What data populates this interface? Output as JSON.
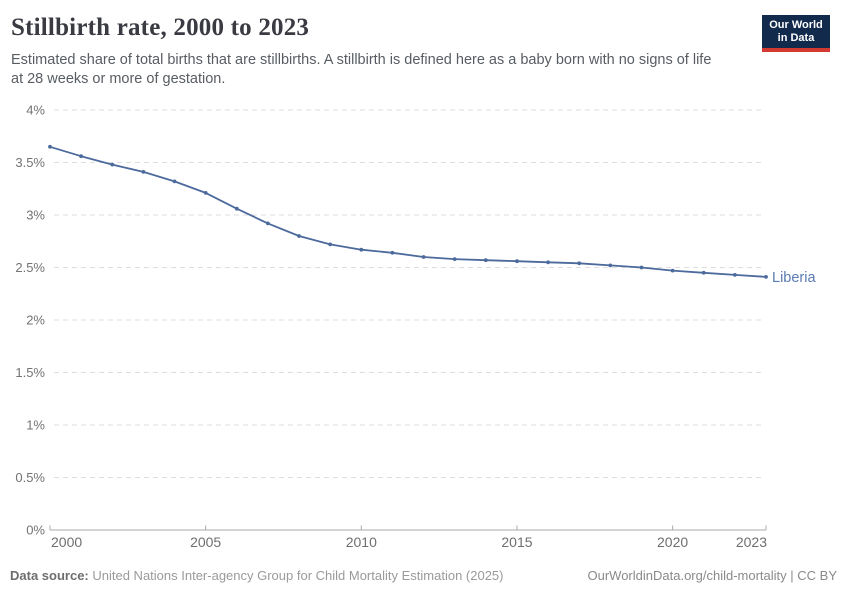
{
  "header": {
    "title": "Stillbirth rate, 2000 to 2023",
    "subtitle_lines": [
      "Estimated share of total births that are stillbirths. A stillbirth is defined here as a baby born with no signs of life",
      "at 28 weeks or more of gestation."
    ],
    "logo": {
      "line1": "Our World",
      "line2": "in Data",
      "bg_color": "#122B4D",
      "accent_color": "#D23A31"
    }
  },
  "chart_data": {
    "type": "line",
    "title": "Stillbirth rate, 2000 to 2023",
    "xlabel": "",
    "ylabel": "",
    "unit": "%",
    "ylim": [
      0,
      4
    ],
    "grid": "horizontal-dashed",
    "legend_position": "end-of-line-label",
    "x": [
      2000,
      2001,
      2002,
      2003,
      2004,
      2005,
      2006,
      2007,
      2008,
      2009,
      2010,
      2011,
      2012,
      2013,
      2014,
      2015,
      2016,
      2017,
      2018,
      2019,
      2020,
      2021,
      2022,
      2023
    ],
    "series": [
      {
        "name": "Liberia",
        "color": "#4C6A9C",
        "label_color": "#5C7BB2",
        "values": [
          3.65,
          3.56,
          3.48,
          3.41,
          3.32,
          3.21,
          3.06,
          2.92,
          2.8,
          2.72,
          2.67,
          2.64,
          2.6,
          2.58,
          2.57,
          2.56,
          2.55,
          2.54,
          2.52,
          2.5,
          2.47,
          2.45,
          2.43,
          2.41
        ]
      }
    ],
    "x_ticks": [
      2000,
      2005,
      2010,
      2015,
      2020,
      2023
    ],
    "y_ticks": [
      {
        "value": 0,
        "label": "0%"
      },
      {
        "value": 0.5,
        "label": "0.5%"
      },
      {
        "value": 1,
        "label": "1%"
      },
      {
        "value": 1.5,
        "label": "1.5%"
      },
      {
        "value": 2,
        "label": "2%"
      },
      {
        "value": 2.5,
        "label": "2.5%"
      },
      {
        "value": 3,
        "label": "3%"
      },
      {
        "value": 3.5,
        "label": "3.5%"
      },
      {
        "value": 4,
        "label": "4%"
      }
    ],
    "colors": {
      "gridline": "#dedede",
      "axis": "#ababab",
      "tick_label": "#737373"
    }
  },
  "footer": {
    "source_label": "Data source:",
    "source_text": " United Nations Inter-agency Group for Child Mortality Estimation (2025)",
    "link_text": "OurWorldinData.org/child-mortality | CC BY"
  }
}
